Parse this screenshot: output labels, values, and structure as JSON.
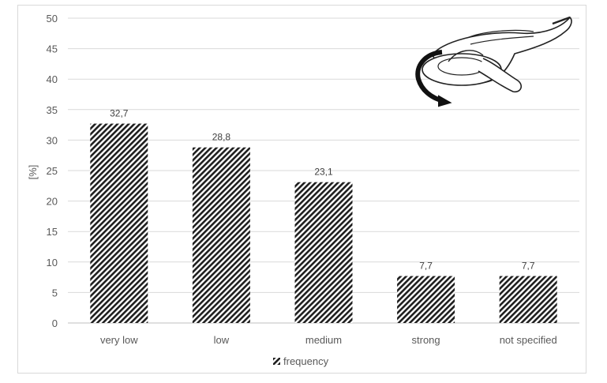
{
  "chart_data": {
    "type": "bar",
    "categories": [
      "very low",
      "low",
      "medium",
      "strong",
      "not specified"
    ],
    "series": [
      {
        "name": "frequency",
        "values": [
          32.7,
          28.8,
          23.1,
          7.7,
          7.7
        ]
      }
    ],
    "data_labels": [
      "32,7",
      "28,8",
      "23,1",
      "7,7",
      "7,7"
    ],
    "ylabel": "[%]",
    "xlabel": "",
    "ylim": [
      0,
      50
    ],
    "y_ticks": [
      "0",
      "5",
      "10",
      "15",
      "20",
      "25",
      "30",
      "35",
      "40",
      "45",
      "50"
    ],
    "grid": true,
    "legend": {
      "position": "bottom",
      "entries": [
        "frequency"
      ]
    },
    "bar_fill": "diagonal-hatch",
    "colors": {
      "bar_stroke": "#222222",
      "gridline": "#d9d9d9",
      "text": "#595959"
    }
  },
  "illustration": {
    "icon": "angle-grinder-icon"
  }
}
